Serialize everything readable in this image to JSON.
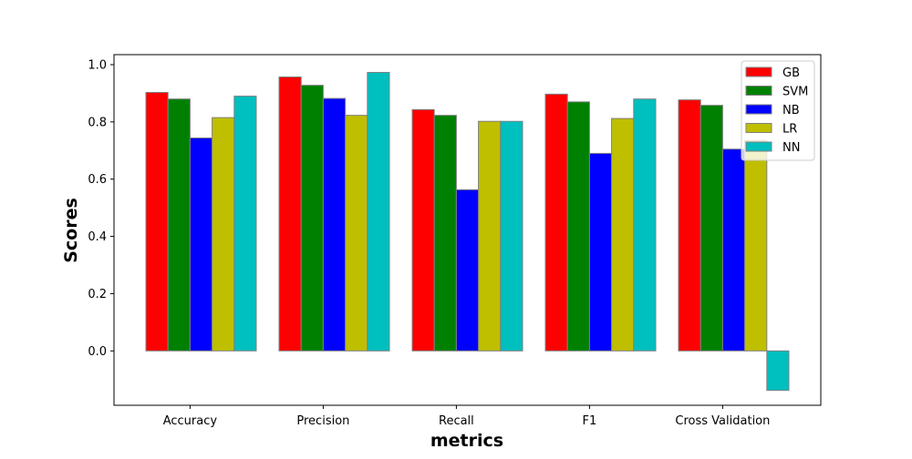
{
  "chart_data": {
    "type": "bar",
    "title": "",
    "xlabel": "metrics",
    "ylabel": "Scores",
    "categories": [
      "Accuracy",
      "Precision",
      "Recall",
      "F1",
      "Cross Validation"
    ],
    "series": [
      {
        "name": "GB",
        "color": "#ff0000",
        "values": [
          0.903,
          0.957,
          0.843,
          0.897,
          0.877
        ]
      },
      {
        "name": "SVM",
        "color": "#008000",
        "values": [
          0.88,
          0.928,
          0.823,
          0.87,
          0.858
        ]
      },
      {
        "name": "NB",
        "color": "#0000ff",
        "values": [
          0.744,
          0.882,
          0.563,
          0.69,
          0.705
        ]
      },
      {
        "name": "LR",
        "color": "#bfbf00",
        "values": [
          0.815,
          0.823,
          0.802,
          0.812,
          0.735
        ]
      },
      {
        "name": "NN",
        "color": "#00bfbf",
        "values": [
          0.89,
          0.973,
          0.802,
          0.88,
          -0.138
        ]
      }
    ],
    "yticks": [
      "0.0",
      "0.2",
      "0.4",
      "0.6",
      "0.8",
      "1.0"
    ],
    "ylim": [
      -0.19,
      1.035
    ],
    "grid": false,
    "legend_position": "top-right",
    "bar_edge_color": "#808080"
  }
}
